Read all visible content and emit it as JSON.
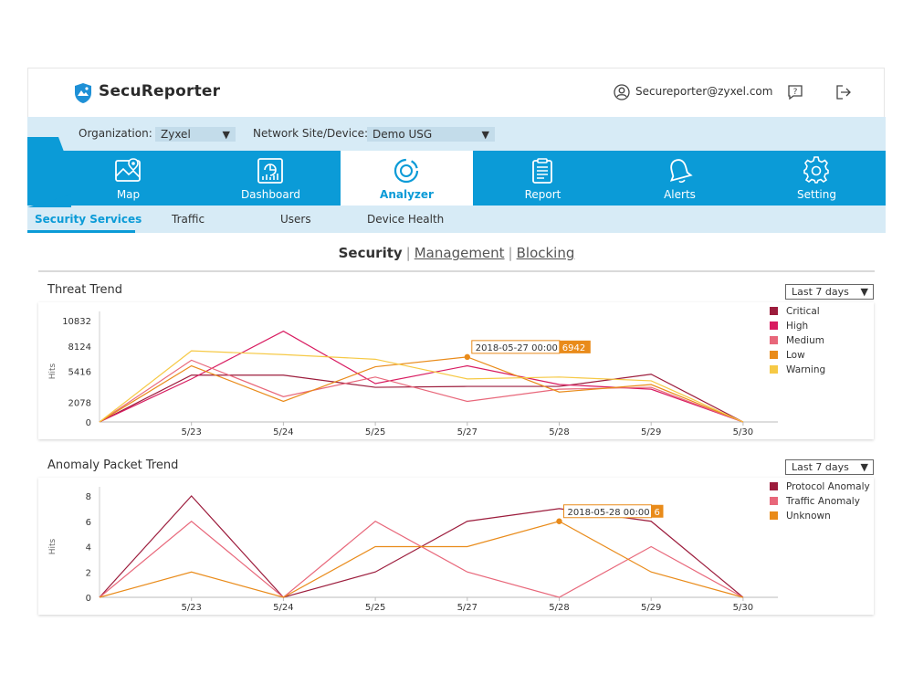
{
  "header": {
    "app_title": "SecuReporter",
    "user_email": "Secureporter@zyxel.com"
  },
  "filters": {
    "organization_label": "Organization:",
    "organization_value": "Zyxel",
    "site_label": "Network Site/Device:",
    "site_value": "Demo USG"
  },
  "nav": {
    "items": [
      {
        "label": "Map",
        "icon": "map-icon"
      },
      {
        "label": "Dashboard",
        "icon": "dashboard-icon"
      },
      {
        "label": "Analyzer",
        "icon": "analyzer-icon",
        "active": true
      },
      {
        "label": "Report",
        "icon": "report-icon"
      },
      {
        "label": "Alerts",
        "icon": "bell-icon"
      },
      {
        "label": "Setting",
        "icon": "gear-icon"
      }
    ]
  },
  "subnav": {
    "items": [
      {
        "label": "Security Services",
        "active": true
      },
      {
        "label": "Traffic"
      },
      {
        "label": "Users"
      },
      {
        "label": "Device Health"
      }
    ]
  },
  "categories": {
    "security": "Security",
    "management": "Management",
    "blocking": "Blocking"
  },
  "colors": {
    "accent": "#0b9bd7",
    "critical": "#9c1c3c",
    "high": "#d81b60",
    "medium": "#e8677a",
    "low": "#e98b1a",
    "warning": "#f6c945",
    "tooltip": "#e98b1a"
  },
  "chart_data": [
    {
      "type": "line",
      "title": "Threat Trend",
      "range_label": "Last 7 days",
      "ylabel": "Hits",
      "x": [
        "",
        "5/23",
        "5/24",
        "5/25",
        "5/27",
        "5/28",
        "5/29",
        "5/30"
      ],
      "yticks": [
        "0",
        "2078",
        "5416",
        "8124",
        "10832"
      ],
      "ylim": [
        0,
        10832
      ],
      "series": [
        {
          "name": "Critical",
          "color": "#9c1c3c",
          "values": [
            0,
            5000,
            5000,
            3700,
            3800,
            3800,
            5100,
            0
          ]
        },
        {
          "name": "High",
          "color": "#d81b60",
          "values": [
            0,
            4600,
            9700,
            4100,
            6000,
            4000,
            3500,
            0
          ]
        },
        {
          "name": "Medium",
          "color": "#e8677a",
          "values": [
            0,
            6600,
            2700,
            4800,
            2200,
            3500,
            3700,
            0
          ]
        },
        {
          "name": "Low",
          "color": "#e98b1a",
          "values": [
            0,
            6000,
            2200,
            5900,
            6942,
            3200,
            4000,
            0
          ]
        },
        {
          "name": "Warning",
          "color": "#f6c945",
          "values": [
            0,
            7600,
            7200,
            6700,
            4600,
            4800,
            4400,
            0
          ]
        }
      ],
      "tooltip": {
        "date": "2018-05-27",
        "time": "00:00",
        "value": "6942",
        "series_index": 3,
        "point_index": 4
      }
    },
    {
      "type": "line",
      "title": "Anomaly Packet Trend",
      "range_label": "Last 7 days",
      "ylabel": "Hits",
      "x": [
        "",
        "5/23",
        "5/24",
        "5/25",
        "5/27",
        "5/28",
        "5/29",
        "5/30"
      ],
      "yticks": [
        "0",
        "2",
        "4",
        "6",
        "8"
      ],
      "ylim": [
        0,
        8
      ],
      "series": [
        {
          "name": "Protocol Anomaly",
          "color": "#9c1c3c",
          "values": [
            0,
            8,
            0,
            2,
            6,
            7,
            6,
            0
          ]
        },
        {
          "name": "Traffic Anomaly",
          "color": "#e8677a",
          "values": [
            0,
            6,
            0,
            6,
            2,
            0,
            4,
            0
          ]
        },
        {
          "name": "Unknown",
          "color": "#e98b1a",
          "values": [
            0,
            2,
            0,
            4,
            4,
            6,
            2,
            0
          ]
        }
      ],
      "tooltip": {
        "date": "2018-05-28",
        "time": "00:00",
        "value": "6",
        "series_index": 2,
        "point_index": 5
      }
    }
  ]
}
